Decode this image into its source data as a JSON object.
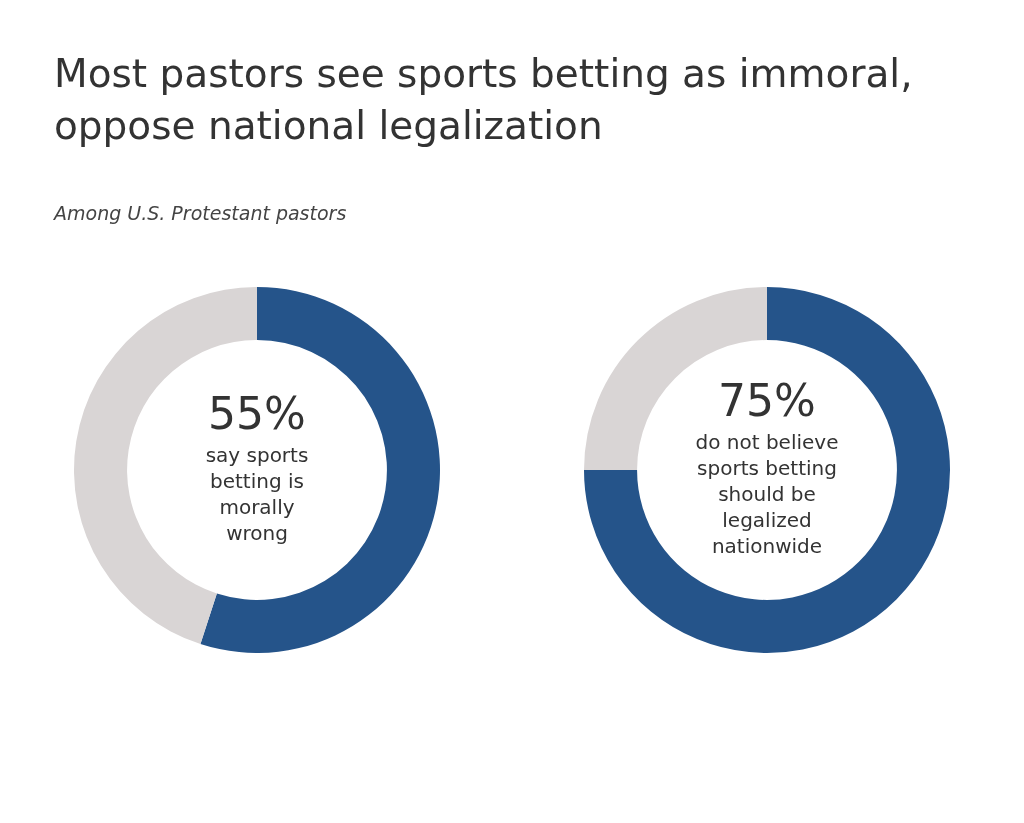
{
  "chart_data": [
    {
      "type": "donut",
      "title": "Most pastors see sports betting as immoral, oppose national legalization",
      "subtitle": "Among U.S. Protestant pastors",
      "categories": [
        null,
        null
      ],
      "values": [
        55,
        45
      ],
      "colors": [
        "#25548a",
        "#d9d5d5"
      ],
      "value_labels": [
        "55%",
        null
      ],
      "annotations": [
        "say sports betting is morally wrong"
      ],
      "legend": false
    },
    {
      "type": "donut",
      "categories": [
        null,
        null
      ],
      "values": [
        75,
        25
      ],
      "colors": [
        "#25548a",
        "#d9d5d5"
      ],
      "value_labels": [
        "75%",
        null
      ],
      "annotations": [
        "do not believe sports betting should be legalized nationwide"
      ],
      "legend": false
    }
  ]
}
